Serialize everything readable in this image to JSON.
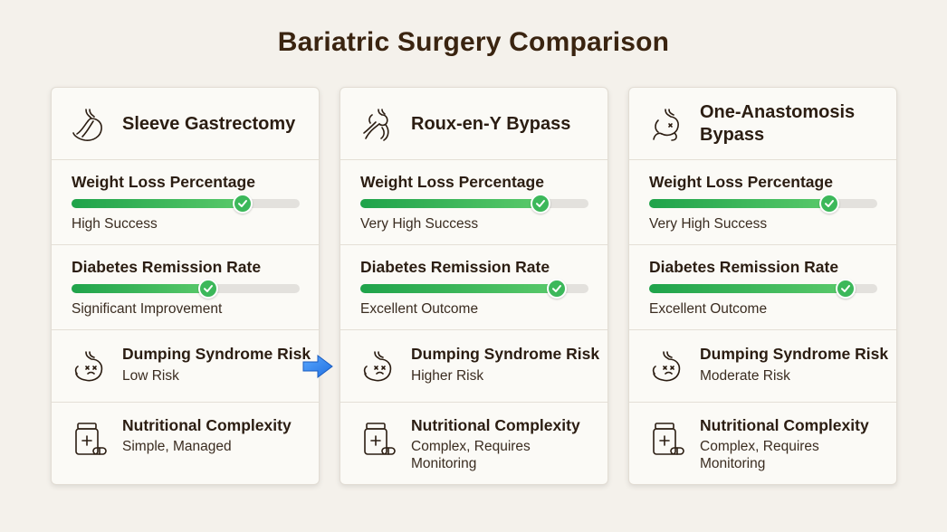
{
  "title": "Bariatric Surgery Comparison",
  "colors": {
    "accent_green": "#3cb85a",
    "arrow_blue": "#2f80ed",
    "text": "#2b1d12"
  },
  "cards": [
    {
      "name": "Sleeve Gastrectomy",
      "icon": "stomach-sleeve-icon",
      "weight_loss": {
        "label": "Weight Loss Percentage",
        "level": 0.75,
        "description": "High Success"
      },
      "diabetes": {
        "label": "Diabetes Remission Rate",
        "level": 0.6,
        "description": "Significant Improvement"
      },
      "dumping": {
        "label": "Dumping Syndrome Risk",
        "description": "Low Risk"
      },
      "nutrition": {
        "label": "Nutritional Complexity",
        "description": "Simple, Managed"
      }
    },
    {
      "name": "Roux-en-Y Bypass",
      "icon": "stomach-bypass-icon",
      "weight_loss": {
        "label": "Weight Loss Percentage",
        "level": 0.79,
        "description": "Very High Success"
      },
      "diabetes": {
        "label": "Diabetes Remission Rate",
        "level": 0.86,
        "description": "Excellent Outcome"
      },
      "dumping": {
        "label": "Dumping Syndrome Risk",
        "description": "Higher Risk"
      },
      "nutrition": {
        "label": "Nutritional Complexity",
        "description": "Complex, Requires Monitoring"
      }
    },
    {
      "name": "One-Anastomosis Bypass",
      "icon": "stomach-anastomosis-icon",
      "weight_loss": {
        "label": "Weight Loss Percentage",
        "level": 0.79,
        "description": "Very High Success"
      },
      "diabetes": {
        "label": "Diabetes Remission Rate",
        "level": 0.86,
        "description": "Excellent Outcome"
      },
      "dumping": {
        "label": "Dumping Syndrome Risk",
        "description": "Moderate Risk"
      },
      "nutrition": {
        "label": "Nutritional Complexity",
        "description": "Complex, Requires Monitoring"
      }
    }
  ]
}
